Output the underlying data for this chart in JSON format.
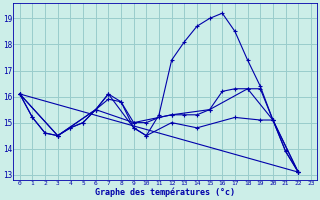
{
  "title": "Graphe des températures (°c)",
  "bg_color": "#cceee8",
  "line_color": "#0000aa",
  "grid_color": "#99cccc",
  "xlim": [
    -0.5,
    23.5
  ],
  "ylim": [
    12.8,
    19.6
  ],
  "yticks": [
    13,
    14,
    15,
    16,
    17,
    18,
    19
  ],
  "xticks": [
    0,
    1,
    2,
    3,
    4,
    5,
    6,
    7,
    8,
    9,
    10,
    11,
    12,
    13,
    14,
    15,
    16,
    17,
    18,
    19,
    20,
    21,
    22,
    23
  ],
  "lines": [
    {
      "x": [
        0,
        1,
        2,
        3,
        4,
        5,
        6,
        7,
        8,
        9,
        10,
        11,
        12,
        13,
        14,
        15,
        16,
        17,
        18,
        19,
        20,
        21,
        22
      ],
      "y": [
        16.1,
        15.2,
        14.6,
        14.5,
        14.8,
        15.0,
        15.5,
        16.1,
        15.8,
        14.8,
        14.5,
        15.3,
        17.4,
        18.1,
        18.7,
        19.0,
        19.2,
        18.5,
        17.4,
        16.4,
        15.1,
        13.9,
        13.1
      ]
    },
    {
      "x": [
        0,
        1,
        2,
        3,
        4,
        5,
        6,
        7,
        8,
        9,
        10,
        11,
        12,
        13,
        14,
        15,
        16,
        17,
        18,
        19,
        20,
        21,
        22
      ],
      "y": [
        16.1,
        15.2,
        14.6,
        14.5,
        14.8,
        15.0,
        15.5,
        15.9,
        15.8,
        15.0,
        15.0,
        15.2,
        15.3,
        15.3,
        15.3,
        15.5,
        16.2,
        16.3,
        16.3,
        16.3,
        15.1,
        13.9,
        13.1
      ]
    },
    {
      "x": [
        0,
        22
      ],
      "y": [
        16.1,
        13.1
      ]
    },
    {
      "x": [
        0,
        3,
        6,
        7,
        9,
        10,
        12,
        14,
        17,
        19,
        20,
        22
      ],
      "y": [
        16.1,
        14.5,
        15.5,
        16.1,
        14.8,
        14.5,
        15.0,
        14.8,
        15.2,
        15.1,
        15.1,
        13.1
      ]
    },
    {
      "x": [
        0,
        3,
        6,
        9,
        12,
        15,
        18,
        20,
        22
      ],
      "y": [
        16.1,
        14.5,
        15.5,
        15.0,
        15.3,
        15.5,
        16.3,
        15.1,
        13.1
      ]
    }
  ]
}
